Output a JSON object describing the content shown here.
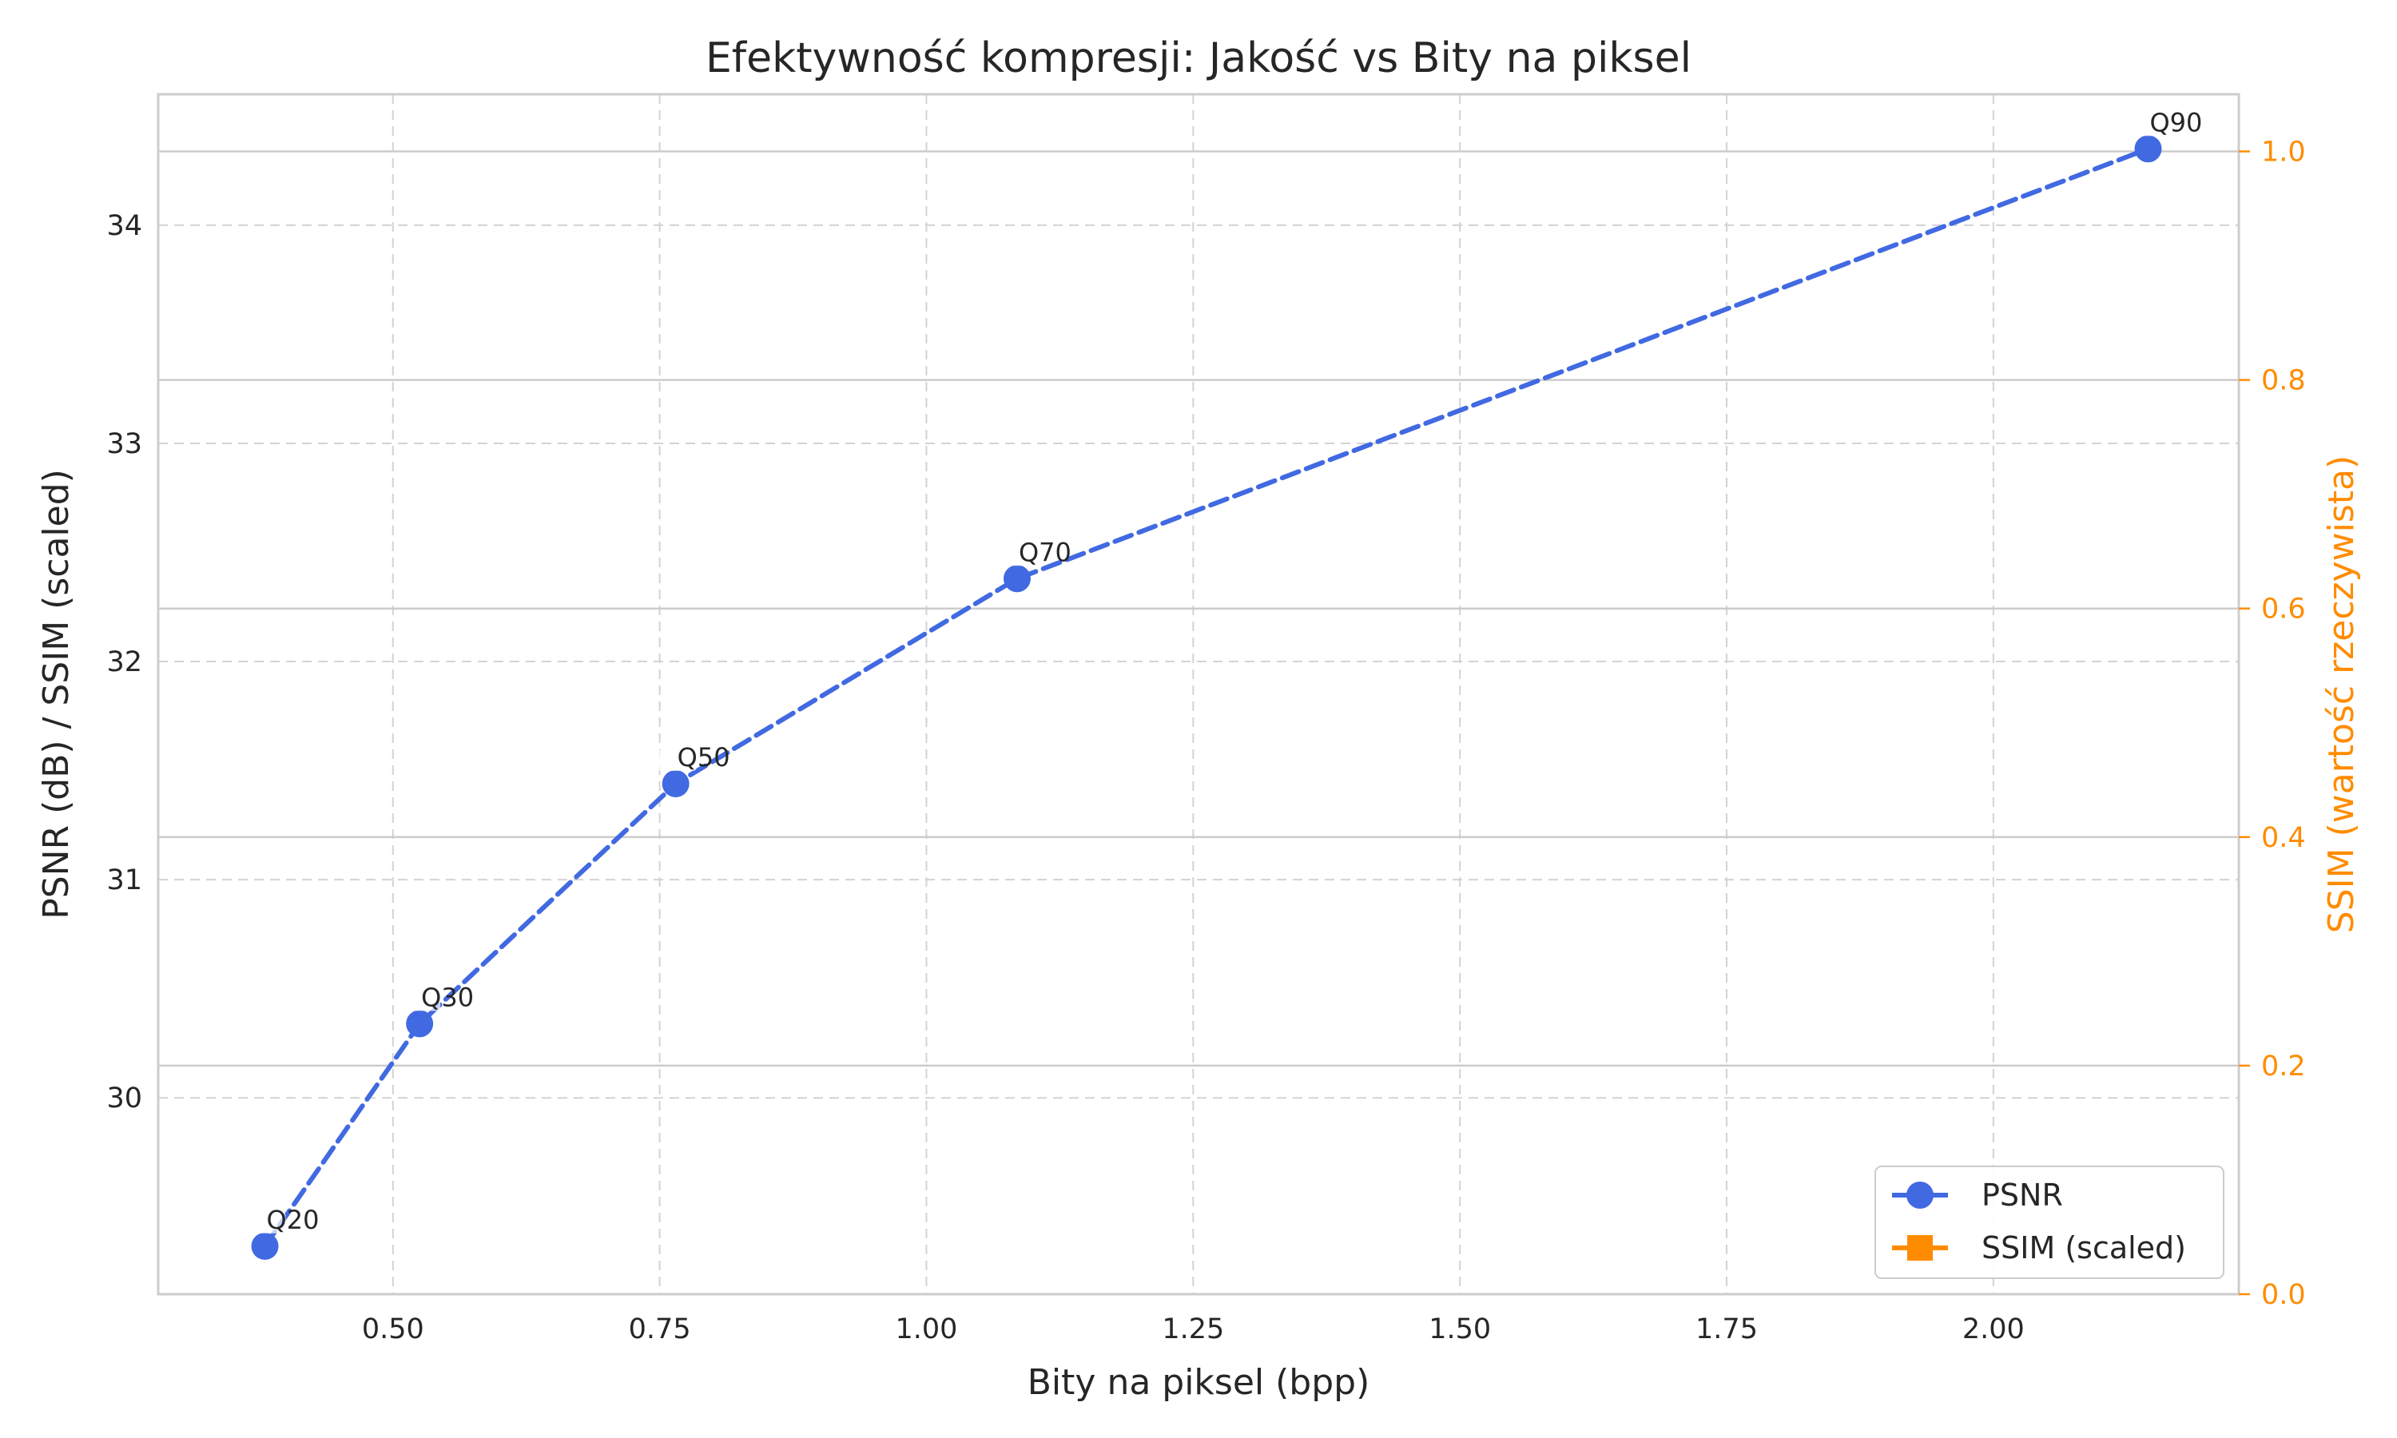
{
  "chart_data": {
    "type": "line",
    "title": "Efektywność kompresji: Jakość vs Bity na piksel",
    "xlabel": "Bity na piksel (bpp)",
    "ylabel": "PSNR (dB) / SSIM (scaled)",
    "ylabel_right": "SSIM (wartość rzeczywista)",
    "xlim": [
      0.28,
      2.23
    ],
    "ylim": [
      29.1,
      34.6
    ],
    "ylim_right": [
      0.0,
      1.05
    ],
    "x_ticks": [
      "0.50",
      "0.75",
      "1.00",
      "1.25",
      "1.50",
      "1.75",
      "2.00"
    ],
    "x_tick_values": [
      0.5,
      0.75,
      1.0,
      1.25,
      1.5,
      1.75,
      2.0
    ],
    "y_ticks": [
      "30",
      "31",
      "32",
      "33",
      "34"
    ],
    "y_tick_values": [
      30,
      31,
      32,
      33,
      34
    ],
    "y_right_ticks": [
      "0.0",
      "0.2",
      "0.4",
      "0.6",
      "0.8",
      "1.0"
    ],
    "y_right_tick_values": [
      0.0,
      0.2,
      0.4,
      0.6,
      0.8,
      1.0
    ],
    "grid": true,
    "legend_position": "bottom-right",
    "series": [
      {
        "name": "PSNR",
        "color": "#4169e1",
        "marker": "circle",
        "linestyle": "dashed",
        "x": [
          0.38,
          0.525,
          0.765,
          1.085,
          2.145
        ],
        "y": [
          29.32,
          30.34,
          31.44,
          32.38,
          34.35
        ],
        "point_labels": [
          "Q20",
          "Q30",
          "Q50",
          "Q70",
          "Q90"
        ]
      },
      {
        "name": "SSIM (scaled)",
        "color": "#ff8c00",
        "marker": "square",
        "linestyle": "dashed",
        "x": [],
        "y": []
      }
    ]
  }
}
